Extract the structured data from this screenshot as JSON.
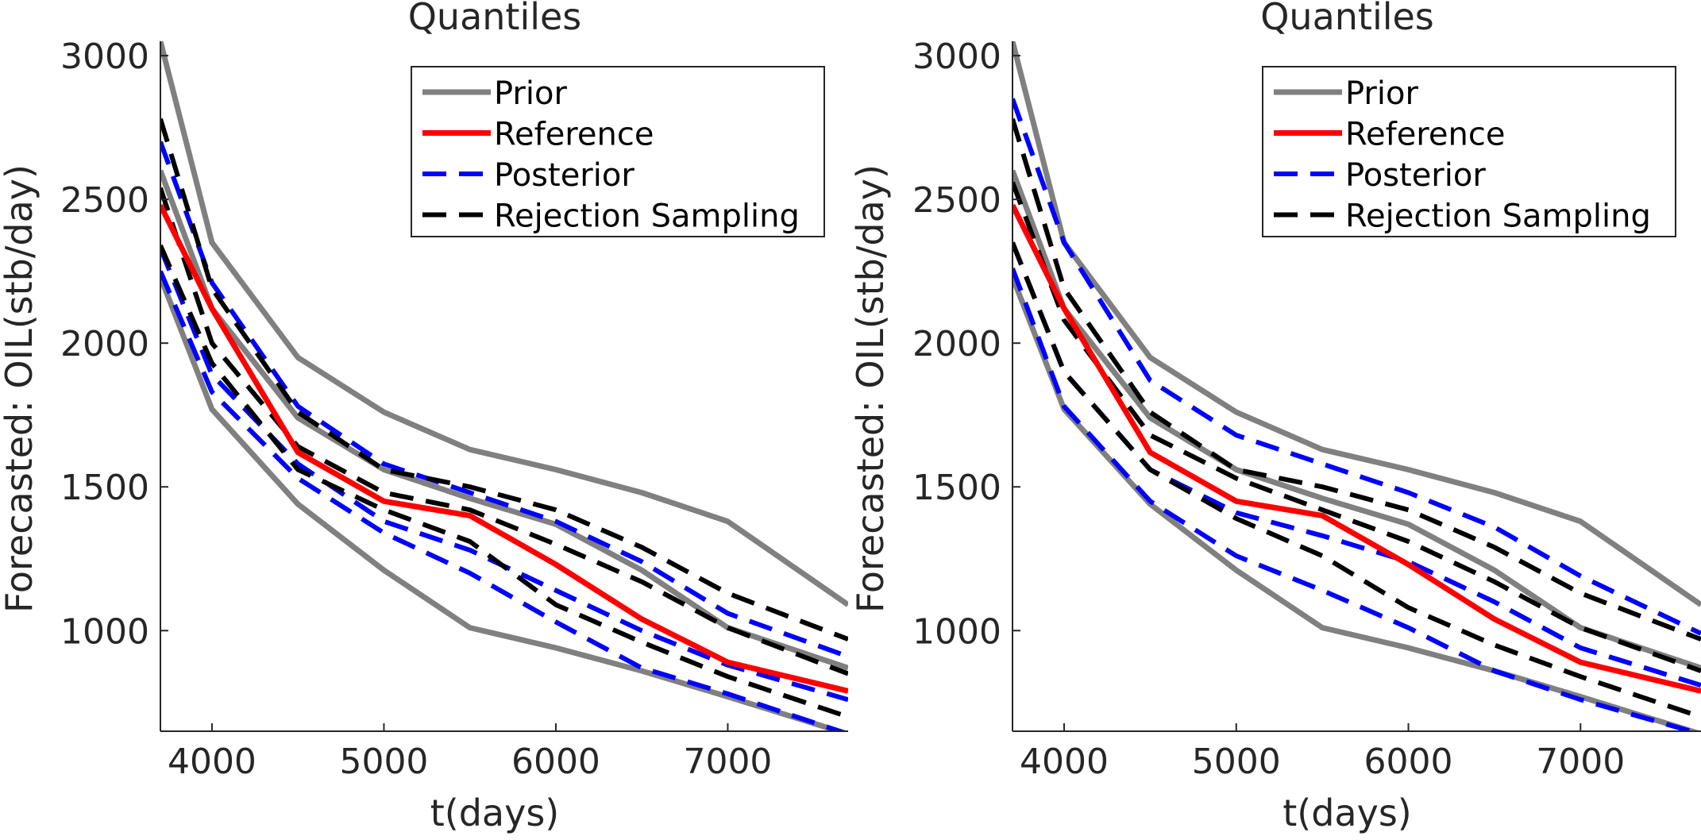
{
  "chart_data": [
    {
      "type": "line",
      "title": "Quantiles",
      "xlabel": "t(days)",
      "ylabel": "Forecasted: OIL(stb/day)",
      "xlim": [
        3700,
        7700
      ],
      "ylim": [
        650,
        3050
      ],
      "xticks": [
        4000,
        5000,
        6000,
        7000
      ],
      "yticks": [
        1000,
        1500,
        2000,
        2500,
        3000
      ],
      "grid": false,
      "legend_position": "top-right",
      "legend": [
        {
          "label": "Prior",
          "color": "#808080",
          "dash": "solid"
        },
        {
          "label": "Reference",
          "color": "#ff0000",
          "dash": "solid"
        },
        {
          "label": "Posterior",
          "color": "#0000ff",
          "dash": "dashed"
        },
        {
          "label": "Rejection Sampling",
          "color": "#000000",
          "dash": "dashed"
        }
      ],
      "x": [
        3700,
        4000,
        4500,
        5000,
        5500,
        6000,
        6500,
        7000,
        7700
      ],
      "series": [
        {
          "group": "Prior",
          "values": [
            3050,
            2350,
            1950,
            1760,
            1630,
            1560,
            1480,
            1380,
            1090
          ]
        },
        {
          "group": "Prior",
          "values": [
            2600,
            2120,
            1740,
            1560,
            1460,
            1370,
            1210,
            1010,
            870
          ]
        },
        {
          "group": "Prior",
          "values": [
            2230,
            1770,
            1440,
            1210,
            1010,
            940,
            860,
            770,
            640
          ]
        },
        {
          "group": "Reference",
          "values": [
            2480,
            2120,
            1620,
            1450,
            1400,
            1230,
            1040,
            890,
            790
          ]
        },
        {
          "group": "Posterior",
          "values": [
            2700,
            2210,
            1780,
            1580,
            1480,
            1380,
            1240,
            1060,
            910
          ]
        },
        {
          "group": "Posterior",
          "values": [
            2330,
            1890,
            1580,
            1380,
            1280,
            1140,
            1000,
            880,
            760
          ]
        },
        {
          "group": "Posterior",
          "values": [
            2250,
            1830,
            1530,
            1340,
            1200,
            1030,
            870,
            780,
            640
          ]
        },
        {
          "group": "Rejection Sampling",
          "values": [
            2780,
            2190,
            1760,
            1560,
            1500,
            1420,
            1290,
            1130,
            970
          ]
        },
        {
          "group": "Rejection Sampling",
          "values": [
            2540,
            2000,
            1640,
            1480,
            1420,
            1300,
            1170,
            1010,
            850
          ]
        },
        {
          "group": "Rejection Sampling",
          "values": [
            2340,
            1930,
            1560,
            1420,
            1310,
            1090,
            960,
            840,
            700
          ]
        }
      ]
    },
    {
      "type": "line",
      "title": "Quantiles",
      "xlabel": "t(days)",
      "ylabel": "Forecasted: OIL(stb/day)",
      "xlim": [
        3700,
        7700
      ],
      "ylim": [
        650,
        3050
      ],
      "xticks": [
        4000,
        5000,
        6000,
        7000
      ],
      "yticks": [
        1000,
        1500,
        2000,
        2500,
        3000
      ],
      "grid": false,
      "legend_position": "top-right",
      "legend": [
        {
          "label": "Prior",
          "color": "#808080",
          "dash": "solid"
        },
        {
          "label": "Reference",
          "color": "#ff0000",
          "dash": "solid"
        },
        {
          "label": "Posterior",
          "color": "#0000ff",
          "dash": "dashed"
        },
        {
          "label": "Rejection Sampling",
          "color": "#000000",
          "dash": "dashed"
        }
      ],
      "x": [
        3700,
        4000,
        4500,
        5000,
        5500,
        6000,
        6500,
        7000,
        7700
      ],
      "series": [
        {
          "group": "Prior",
          "values": [
            3050,
            2350,
            1950,
            1760,
            1630,
            1560,
            1480,
            1380,
            1090
          ]
        },
        {
          "group": "Prior",
          "values": [
            2600,
            2120,
            1740,
            1560,
            1460,
            1370,
            1210,
            1010,
            870
          ]
        },
        {
          "group": "Prior",
          "values": [
            2230,
            1770,
            1440,
            1210,
            1010,
            940,
            860,
            770,
            640
          ]
        },
        {
          "group": "Reference",
          "values": [
            2480,
            2120,
            1620,
            1450,
            1400,
            1230,
            1040,
            890,
            790
          ]
        },
        {
          "group": "Posterior",
          "values": [
            2850,
            2350,
            1870,
            1680,
            1580,
            1480,
            1360,
            1190,
            990
          ]
        },
        {
          "group": "Posterior",
          "values": [
            2350,
            1900,
            1560,
            1410,
            1330,
            1240,
            1100,
            940,
            810
          ]
        },
        {
          "group": "Posterior",
          "values": [
            2260,
            1780,
            1450,
            1260,
            1140,
            1010,
            860,
            760,
            640
          ]
        },
        {
          "group": "Rejection Sampling",
          "values": [
            2780,
            2190,
            1760,
            1560,
            1500,
            1420,
            1290,
            1130,
            970
          ]
        },
        {
          "group": "Rejection Sampling",
          "values": [
            2560,
            2080,
            1680,
            1530,
            1420,
            1310,
            1170,
            1010,
            860
          ]
        },
        {
          "group": "Rejection Sampling",
          "values": [
            2350,
            1900,
            1560,
            1390,
            1260,
            1080,
            950,
            840,
            700
          ]
        }
      ]
    }
  ]
}
